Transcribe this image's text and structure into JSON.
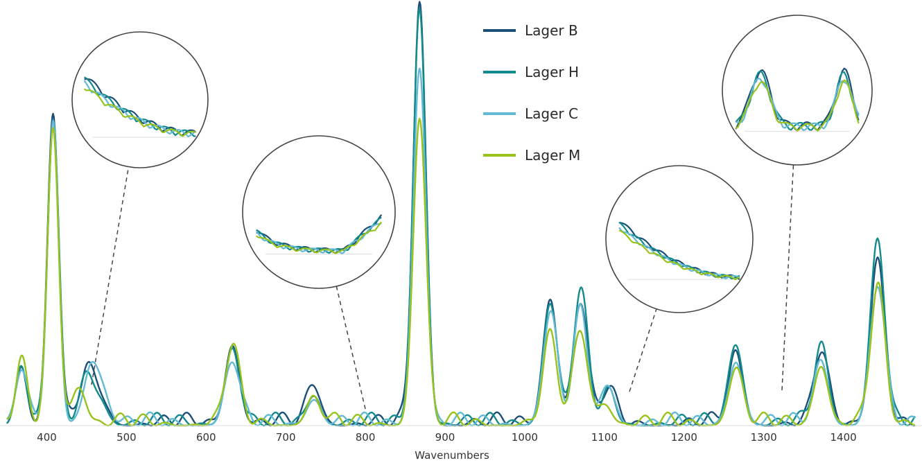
{
  "chart_data": {
    "type": "line",
    "title": "",
    "xlabel": "Wavenumbers",
    "ylabel": "",
    "xlim": [
      350,
      1490
    ],
    "ylim": [
      0,
      1.0
    ],
    "x_ticks": [
      400,
      500,
      600,
      700,
      800,
      900,
      1000,
      1100,
      1200,
      1300,
      1400
    ],
    "grid": false,
    "legend_position": "top-center",
    "series": [
      {
        "name": "Lager B",
        "color": "#1b4f78",
        "peaks": [
          [
            368,
            0.14
          ],
          [
            408,
            0.74
          ],
          [
            450,
            0.12
          ],
          [
            468,
            0.06
          ],
          [
            633,
            0.19
          ],
          [
            735,
            0.09
          ],
          [
            868,
            1.0
          ],
          [
            1032,
            0.3
          ],
          [
            1070,
            0.29
          ],
          [
            1105,
            0.08
          ],
          [
            1265,
            0.16
          ],
          [
            1372,
            0.17
          ],
          [
            1443,
            0.4
          ]
        ]
      },
      {
        "name": "Lager H",
        "color": "#138a8c",
        "peaks": [
          [
            368,
            0.14
          ],
          [
            408,
            0.72
          ],
          [
            450,
            0.11
          ],
          [
            468,
            0.05
          ],
          [
            633,
            0.18
          ],
          [
            735,
            0.07
          ],
          [
            868,
            0.99
          ],
          [
            1032,
            0.29
          ],
          [
            1070,
            0.31
          ],
          [
            1105,
            0.07
          ],
          [
            1265,
            0.19
          ],
          [
            1372,
            0.18
          ],
          [
            1443,
            0.44
          ]
        ]
      },
      {
        "name": "Lager C",
        "color": "#62bad4",
        "peaks": [
          [
            368,
            0.13
          ],
          [
            408,
            0.7
          ],
          [
            455,
            0.13
          ],
          [
            470,
            0.07
          ],
          [
            633,
            0.15
          ],
          [
            735,
            0.06
          ],
          [
            868,
            0.85
          ],
          [
            1032,
            0.26
          ],
          [
            1070,
            0.26
          ],
          [
            1105,
            0.09
          ],
          [
            1265,
            0.15
          ],
          [
            1372,
            0.15
          ],
          [
            1443,
            0.33
          ]
        ]
      },
      {
        "name": "Lager M",
        "color": "#99c21b",
        "peaks": [
          [
            368,
            0.14
          ],
          [
            408,
            0.7
          ],
          [
            440,
            0.09
          ],
          [
            633,
            0.18
          ],
          [
            735,
            0.06
          ],
          [
            868,
            0.73
          ],
          [
            1032,
            0.2
          ],
          [
            1070,
            0.22
          ],
          [
            1100,
            0.05
          ],
          [
            1265,
            0.13
          ],
          [
            1372,
            0.14
          ],
          [
            1443,
            0.32
          ]
        ]
      }
    ]
  }
}
